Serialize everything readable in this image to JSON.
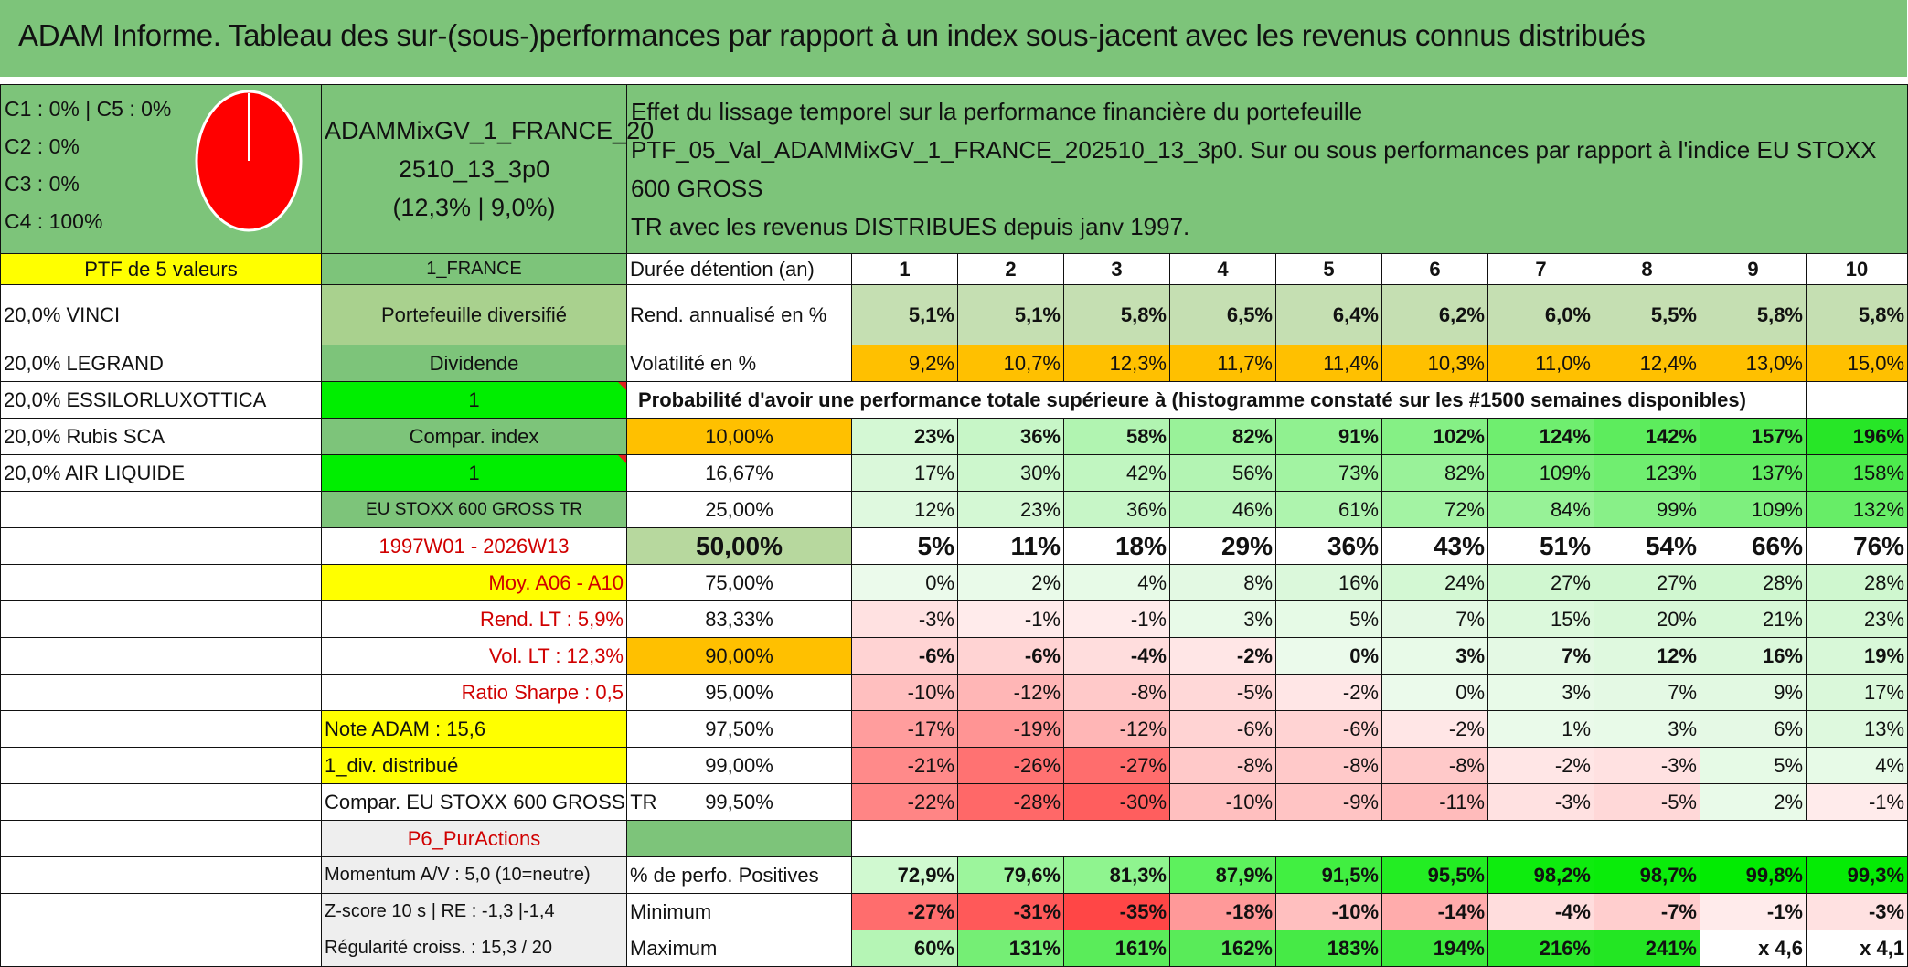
{
  "title": "ADAM Informe. Tableau des sur-(sous-)performances par rapport à un index sous-jacent avec les revenus connus distribués",
  "colors": {
    "header_green": "#7dc47a",
    "yellow": "#ffff00",
    "orange": "#ffc000",
    "lime": "#00ee00",
    "pie_red": "#ff0000"
  },
  "allocation": {
    "lines": [
      "C1 : 0% | C5 : 0%",
      "C2 : 0%",
      "C3 : 0%",
      "C4 : 100%"
    ],
    "pie_c4_share": 1.0
  },
  "portfolio": {
    "name": "ADAMMixGV_1_FRANCE_202510_13_3p0",
    "name_l1": "ADAMMixGV_1_FRANCE_20",
    "name_l2": "2510_13_3p0",
    "stats": "(12,3% | 9,0%)"
  },
  "description": {
    "l1": "Effet du lissage temporel sur la performance financière du portefeuille",
    "l2": "PTF_05_Val_ADAMMixGV_1_FRANCE_202510_13_3p0. Sur ou sous performances par rapport à l'indice EU STOXX 600 GROSS",
    "l3": "TR avec les revenus DISTRIBUES depuis janv 1997."
  },
  "left_col": [
    "PTF de 5 valeurs",
    "20,0% VINCI",
    "20,0% LEGRAND",
    "20,0% ESSILORLUXOTTICA",
    "20,0% Rubis SCA",
    "20,0% AIR LIQUIDE",
    "Note ADAM : 15,6",
    "1_div. distribué",
    "Compar. EU STOXX 600 GROSS TR",
    "Momentum A/V : 5,0 (10=neutre)",
    "Z-score 10 s | RE : -1,3 |-1,4",
    "Régularité croiss. : 15,3 / 20"
  ],
  "mid_col": [
    "1_FRANCE",
    "Portefeuille diversifié",
    "Dividende",
    "1",
    "Compar. index",
    "1",
    "EU STOXX 600 GROSS TR",
    "1997W01 - 2026W13",
    "Moy. A06 - A10",
    "Rend. LT : 5,9%",
    "Vol. LT : 12,3%",
    "Ratio Sharpe : 0,5",
    "P6_PurActions"
  ],
  "row_labels": {
    "duree": "Durée détention (an)",
    "rend": "Rend. annualisé en %",
    "vol": "Volatilité en %",
    "prob_title": "Probabilité d'avoir une performance totale supérieure à (histogramme constaté sur les #1500 semaines disponibles)",
    "pos": "% de perfo. Positives",
    "min": "Minimum",
    "max": "Maximum"
  },
  "years": [
    "1",
    "2",
    "3",
    "4",
    "5",
    "6",
    "7",
    "8",
    "9",
    "10"
  ],
  "rend": [
    "5,1%",
    "5,1%",
    "5,8%",
    "6,5%",
    "6,4%",
    "6,2%",
    "6,0%",
    "5,5%",
    "5,8%",
    "5,8%"
  ],
  "vol": [
    "9,2%",
    "10,7%",
    "12,3%",
    "11,7%",
    "11,4%",
    "10,3%",
    "11,0%",
    "12,4%",
    "13,0%",
    "15,0%"
  ],
  "prob": [
    {
      "t": "10,00%",
      "v": [
        "23%",
        "36%",
        "58%",
        "82%",
        "91%",
        "102%",
        "124%",
        "142%",
        "157%",
        "196%"
      ]
    },
    {
      "t": "16,67%",
      "v": [
        "17%",
        "30%",
        "42%",
        "56%",
        "73%",
        "82%",
        "109%",
        "123%",
        "137%",
        "158%"
      ]
    },
    {
      "t": "25,00%",
      "v": [
        "12%",
        "23%",
        "36%",
        "46%",
        "61%",
        "72%",
        "84%",
        "99%",
        "109%",
        "132%"
      ]
    },
    {
      "t": "50,00%",
      "v": [
        "5%",
        "11%",
        "18%",
        "29%",
        "36%",
        "43%",
        "51%",
        "54%",
        "66%",
        "76%"
      ]
    },
    {
      "t": "75,00%",
      "v": [
        "0%",
        "2%",
        "4%",
        "8%",
        "16%",
        "24%",
        "27%",
        "27%",
        "28%",
        "28%"
      ]
    },
    {
      "t": "83,33%",
      "v": [
        "-3%",
        "-1%",
        "-1%",
        "3%",
        "5%",
        "7%",
        "15%",
        "20%",
        "21%",
        "23%"
      ]
    },
    {
      "t": "90,00%",
      "v": [
        "-6%",
        "-6%",
        "-4%",
        "-2%",
        "0%",
        "3%",
        "7%",
        "12%",
        "16%",
        "19%"
      ]
    },
    {
      "t": "95,00%",
      "v": [
        "-10%",
        "-12%",
        "-8%",
        "-5%",
        "-2%",
        "0%",
        "3%",
        "7%",
        "9%",
        "17%"
      ]
    },
    {
      "t": "97,50%",
      "v": [
        "-17%",
        "-19%",
        "-12%",
        "-6%",
        "-6%",
        "-2%",
        "1%",
        "3%",
        "6%",
        "13%"
      ]
    },
    {
      "t": "99,00%",
      "v": [
        "-21%",
        "-26%",
        "-27%",
        "-8%",
        "-8%",
        "-8%",
        "-2%",
        "-3%",
        "5%",
        "4%"
      ]
    },
    {
      "t": "99,50%",
      "v": [
        "-22%",
        "-28%",
        "-30%",
        "-10%",
        "-9%",
        "-11%",
        "-3%",
        "-5%",
        "2%",
        "-1%"
      ]
    }
  ],
  "pos": [
    "72,9%",
    "79,6%",
    "81,3%",
    "87,9%",
    "91,5%",
    "95,5%",
    "98,2%",
    "98,7%",
    "99,8%",
    "99,3%"
  ],
  "min": [
    "-27%",
    "-31%",
    "-35%",
    "-18%",
    "-10%",
    "-14%",
    "-4%",
    "-7%",
    "-1%",
    "-3%"
  ],
  "max": [
    "60%",
    "131%",
    "161%",
    "162%",
    "183%",
    "194%",
    "216%",
    "241%",
    "x 4,6",
    "x 4,1"
  ]
}
